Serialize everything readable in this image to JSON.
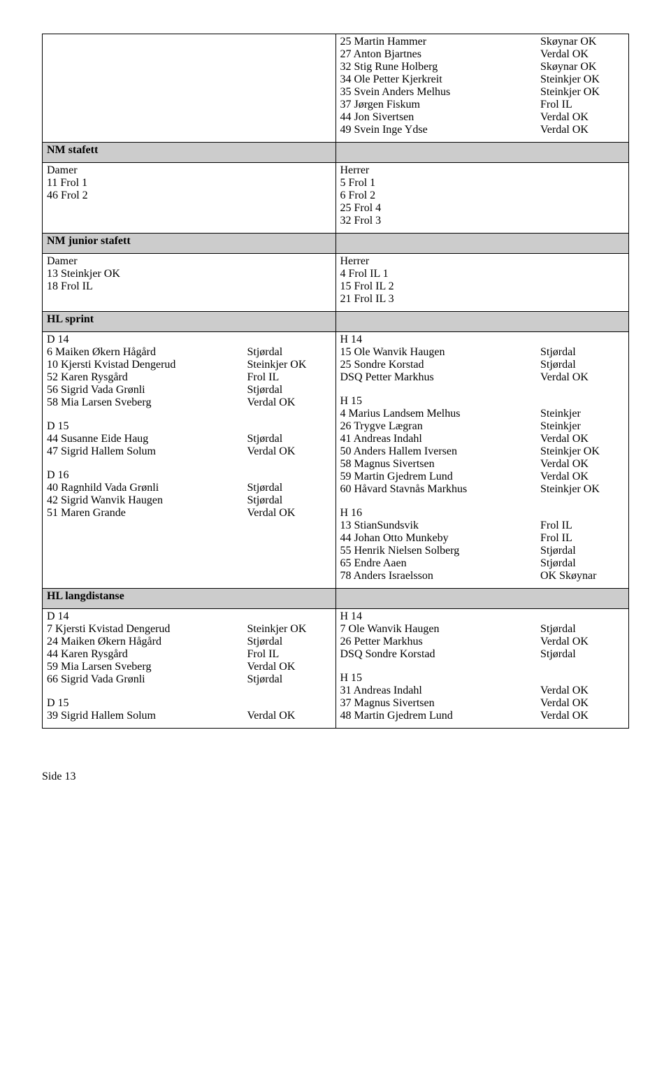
{
  "topRight": {
    "rows": [
      [
        "25 Martin Hammer",
        "Skøynar OK"
      ],
      [
        "27 Anton Bjartnes",
        "Verdal OK"
      ],
      [
        "32 Stig Rune Holberg",
        "Skøynar OK"
      ],
      [
        "34 Ole Petter Kjerkreit",
        "Steinkjer OK"
      ],
      [
        "35 Svein Anders Melhus",
        "Steinkjer OK"
      ],
      [
        "37 Jørgen Fiskum",
        "Frol IL"
      ],
      [
        "44 Jon Sivertsen",
        "Verdal OK"
      ],
      [
        "49 Svein Inge Ydse",
        "Verdal OK"
      ]
    ]
  },
  "nmStafett": {
    "title": "NM stafett",
    "left": {
      "heading": "Damer",
      "lines": [
        "11 Frol 1",
        "46 Frol 2"
      ]
    },
    "right": {
      "heading": "Herrer",
      "lines": [
        "5 Frol 1",
        "6 Frol 2",
        "25 Frol 4",
        "32 Frol 3"
      ]
    }
  },
  "nmJunior": {
    "title": "NM junior stafett",
    "left": {
      "heading": "Damer",
      "lines": [
        "13 Steinkjer OK",
        "18 Frol IL"
      ]
    },
    "right": {
      "heading": "Herrer",
      "lines": [
        "4 Frol IL 1",
        "15 Frol IL 2",
        "21 Frol IL 3"
      ]
    }
  },
  "hlSprint": {
    "title": "HL sprint",
    "left": {
      "groups": [
        {
          "heading": "D 14",
          "rows": [
            [
              "6 Maiken Økern Hågård",
              "Stjørdal"
            ],
            [
              "10 Kjersti Kvistad Dengerud",
              "Steinkjer OK"
            ],
            [
              "52 Karen Rysgård",
              "Frol IL"
            ],
            [
              "56 Sigrid Vada Grønli",
              "Stjørdal"
            ],
            [
              "58 Mia Larsen Sveberg",
              "Verdal OK"
            ]
          ]
        },
        {
          "heading": "D 15",
          "rows": [
            [
              "44 Susanne Eide Haug",
              "Stjørdal"
            ],
            [
              "47 Sigrid Hallem Solum",
              "Verdal OK"
            ]
          ]
        },
        {
          "heading": "D 16",
          "rows": [
            [
              "40 Ragnhild Vada Grønli",
              "Stjørdal"
            ],
            [
              "42 Sigrid Wanvik Haugen",
              "Stjørdal"
            ],
            [
              "51 Maren Grande",
              "Verdal OK"
            ]
          ]
        }
      ]
    },
    "right": {
      "groups": [
        {
          "heading": "H 14",
          "rows": [
            [
              "15 Ole Wanvik Haugen",
              "Stjørdal"
            ],
            [
              "25 Sondre Korstad",
              "Stjørdal"
            ],
            [
              "DSQ Petter Markhus",
              "Verdal OK"
            ]
          ]
        },
        {
          "heading": "H 15",
          "rows": [
            [
              "4 Marius Landsem Melhus",
              "Steinkjer"
            ],
            [
              "26 Trygve Lægran",
              "Steinkjer"
            ],
            [
              "41 Andreas Indahl",
              "Verdal OK"
            ],
            [
              "50 Anders Hallem Iversen",
              "Steinkjer OK"
            ],
            [
              "58 Magnus Sivertsen",
              "Verdal OK"
            ],
            [
              "59 Martin Gjedrem Lund",
              "Verdal OK"
            ],
            [
              "60 Håvard Stavnås Markhus",
              "Steinkjer OK"
            ]
          ]
        },
        {
          "heading": "H 16",
          "rows": [
            [
              "13 StianSundsvik",
              "Frol IL"
            ],
            [
              "44 Johan Otto Munkeby",
              "Frol IL"
            ],
            [
              "55 Henrik Nielsen Solberg",
              "Stjørdal"
            ],
            [
              "65 Endre Aaen",
              "Stjørdal"
            ],
            [
              "78 Anders Israelsson",
              "OK Skøynar"
            ]
          ]
        }
      ]
    }
  },
  "hlLang": {
    "title": "HL langdistanse",
    "left": {
      "groups": [
        {
          "heading": "D 14",
          "rows": [
            [
              "7 Kjersti Kvistad Dengerud",
              "Steinkjer OK"
            ],
            [
              "24 Maiken Økern Hågård",
              "Stjørdal"
            ],
            [
              "44 Karen Rysgård",
              "Frol IL"
            ],
            [
              "59 Mia Larsen Sveberg",
              "Verdal OK"
            ],
            [
              "66 Sigrid Vada Grønli",
              "Stjørdal"
            ]
          ]
        },
        {
          "heading": "D 15",
          "rows": [
            [
              "39 Sigrid Hallem Solum",
              "Verdal OK"
            ]
          ]
        }
      ]
    },
    "right": {
      "groups": [
        {
          "heading": "H 14",
          "rows": [
            [
              "7 Ole Wanvik Haugen",
              "Stjørdal"
            ],
            [
              "26 Petter Markhus",
              "Verdal OK"
            ],
            [
              "DSQ Sondre Korstad",
              "Stjørdal"
            ]
          ]
        },
        {
          "heading": "H 15",
          "rows": [
            [
              "31 Andreas Indahl",
              "Verdal OK"
            ],
            [
              "37 Magnus Sivertsen",
              "Verdal OK"
            ],
            [
              "48 Martin Gjedrem Lund",
              "Verdal OK"
            ]
          ]
        }
      ]
    }
  },
  "footer": "Side 13"
}
